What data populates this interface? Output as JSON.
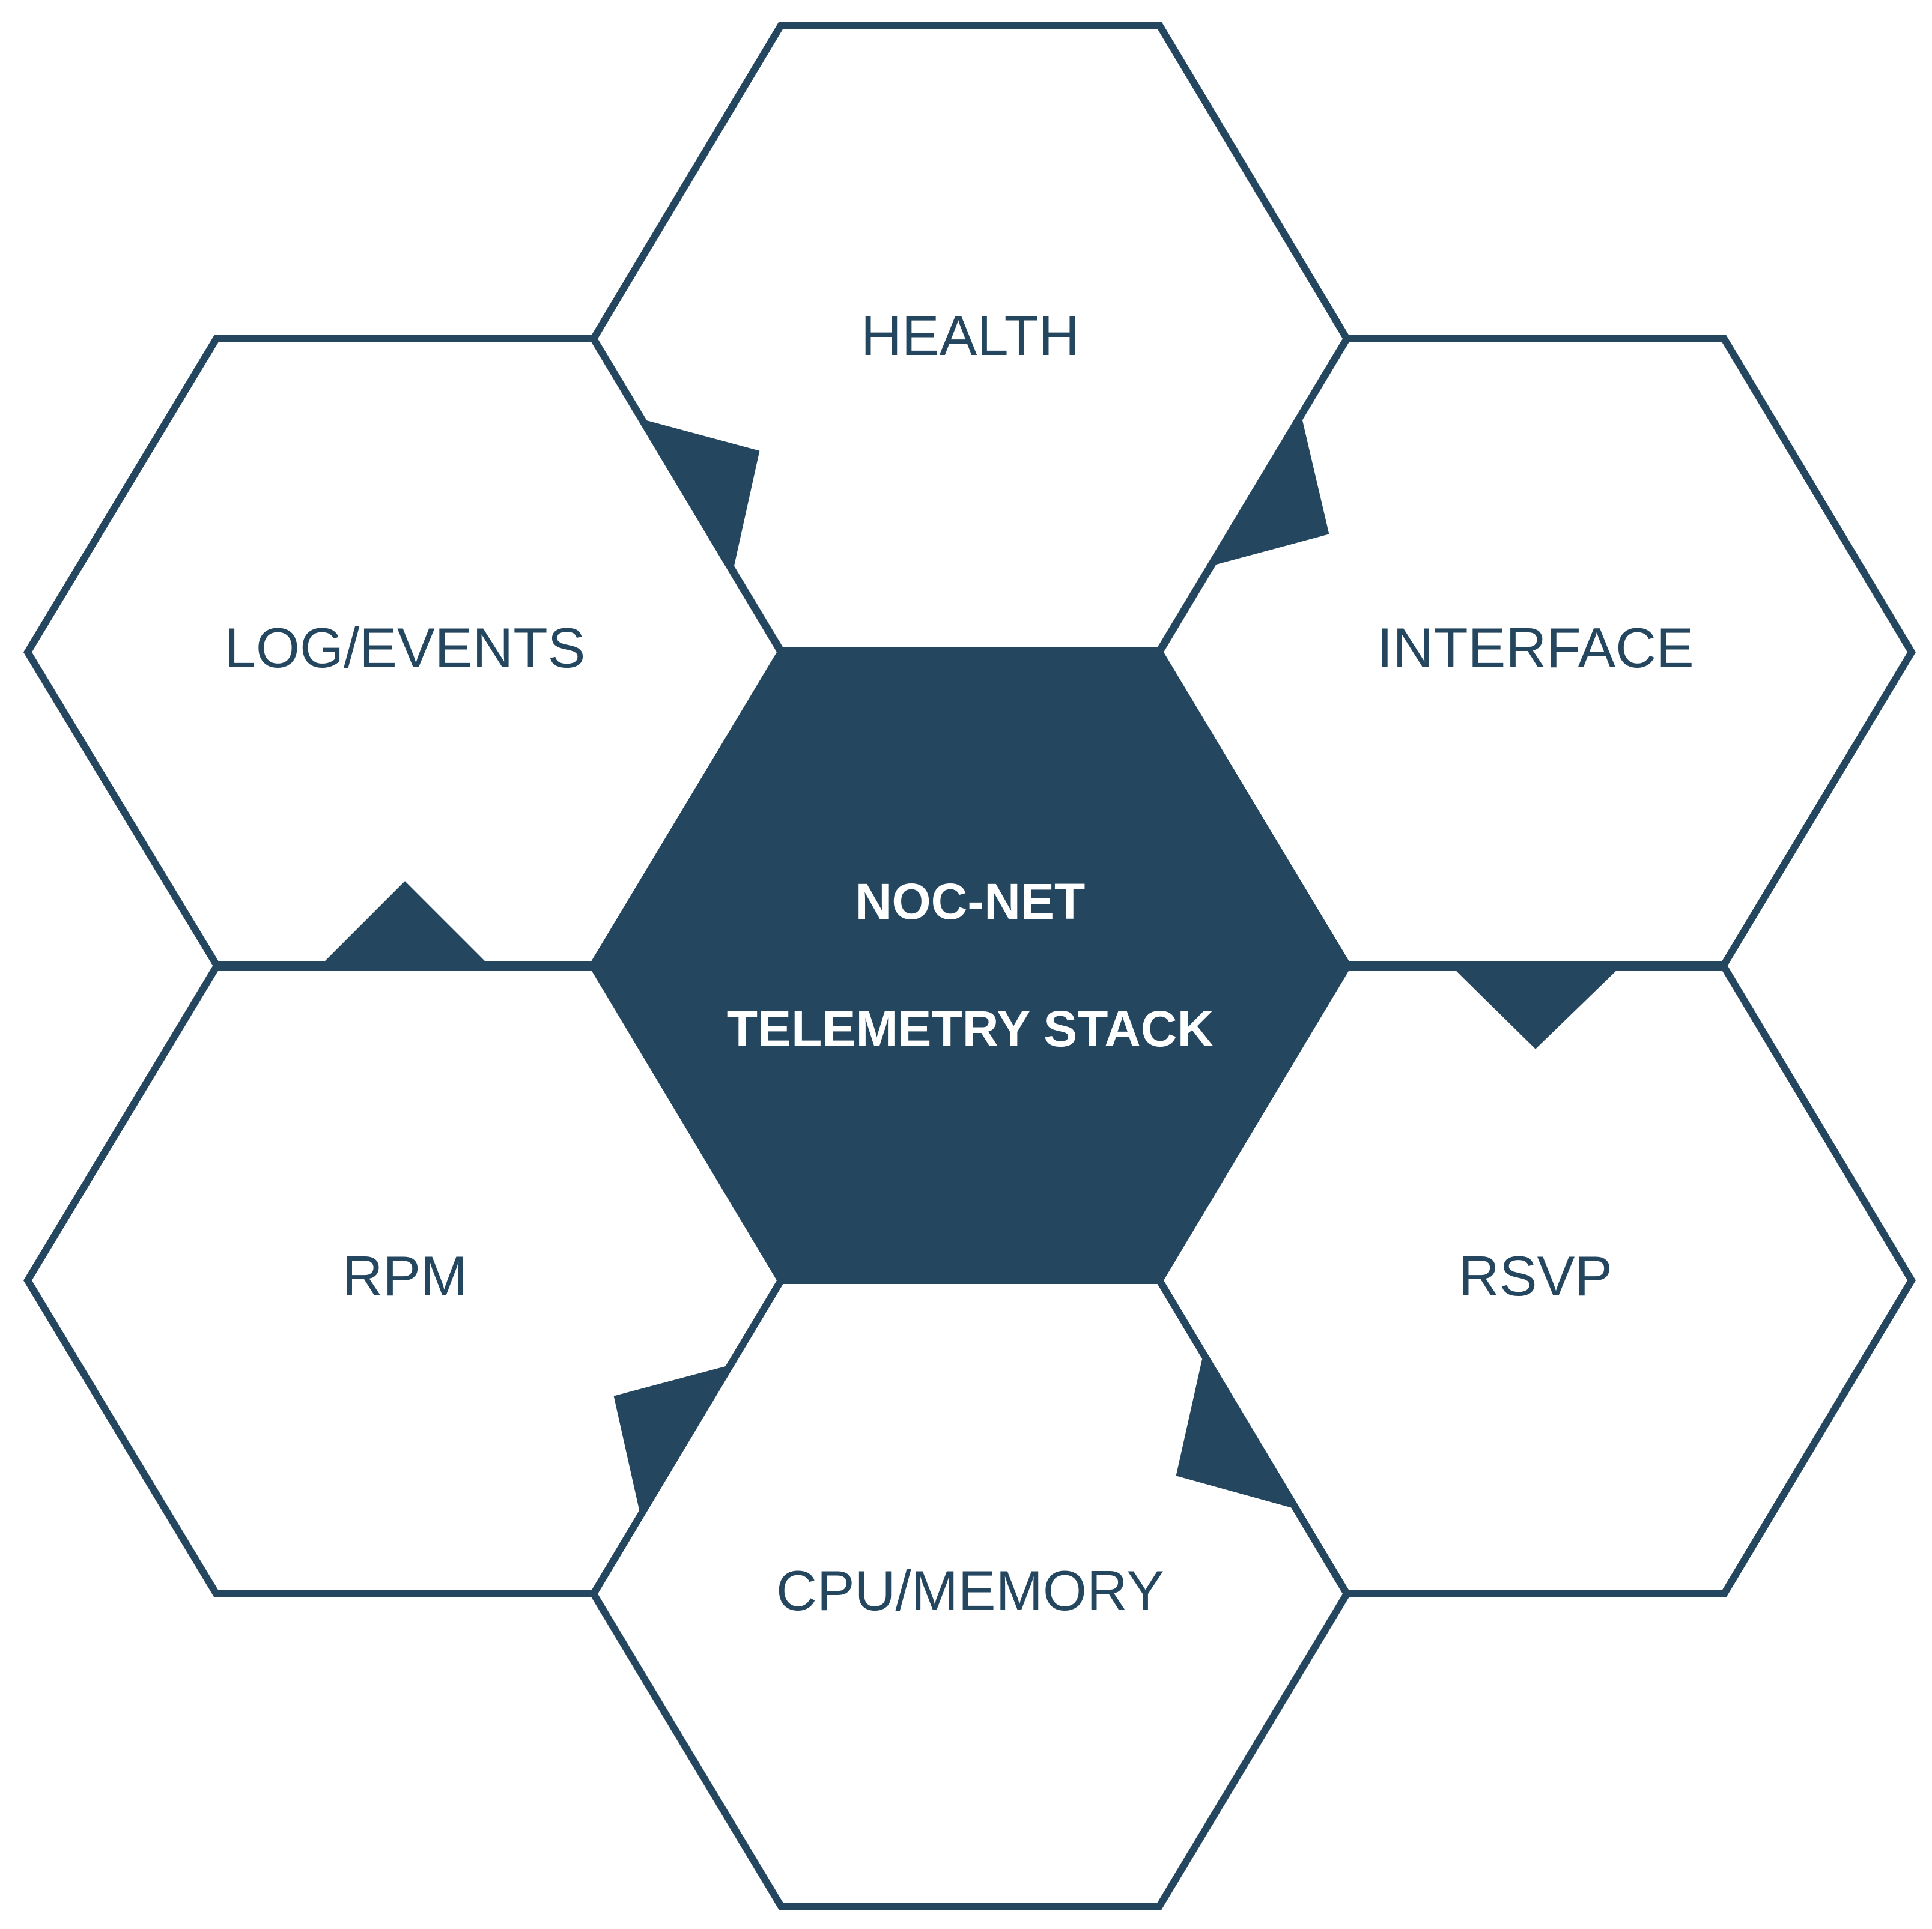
{
  "colors": {
    "accent": "#24475F",
    "stroke": "#24475F",
    "label": "#24475F",
    "center_text": "#FFFFFF",
    "background": "#FFFFFF"
  },
  "diagram": {
    "center": {
      "line1": "NOC-NET",
      "line2": "TELEMETRY STACK"
    },
    "nodes": [
      {
        "id": "health",
        "label": "HEALTH"
      },
      {
        "id": "interface",
        "label": "INTERFACE"
      },
      {
        "id": "rsvp",
        "label": "RSVP"
      },
      {
        "id": "cpu-memory",
        "label": "CPU/MEMORY"
      },
      {
        "id": "rpm",
        "label": "RPM"
      },
      {
        "id": "log-events",
        "label": "LOG/EVENTS"
      }
    ]
  }
}
